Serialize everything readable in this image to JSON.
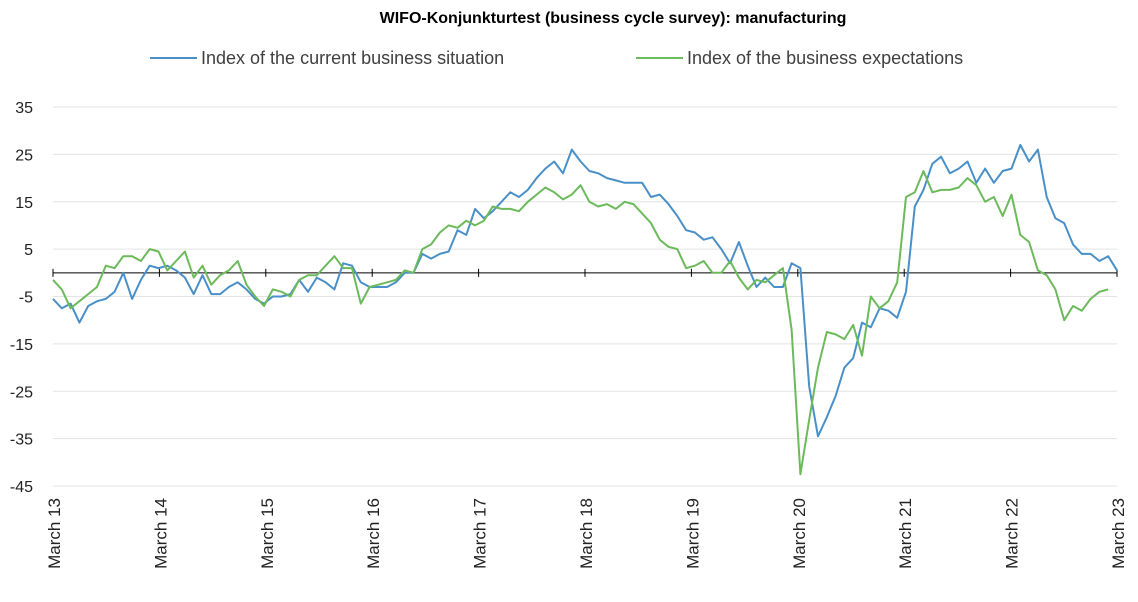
{
  "chart_data": {
    "type": "line",
    "title": "WIFO-Konjunkturtest (business cycle survey): manufacturing",
    "xlabel": "",
    "ylabel": "",
    "ylim": [
      -45,
      35
    ],
    "yticks": [
      35,
      25,
      15,
      5,
      -5,
      -15,
      -25,
      -35,
      -45
    ],
    "grid": true,
    "legend_position": "top",
    "x_start": "March 13",
    "x_end": "March 23",
    "x_tick_labels": [
      "March 13",
      "March 14",
      "March 15",
      "March 16",
      "March 17",
      "March 18",
      "March 19",
      "March 20",
      "March 21",
      "March 22",
      "March 23"
    ],
    "series": [
      {
        "name": "Index of the current business situation",
        "color": "#4a90c8",
        "values": [
          -5.5,
          -7.5,
          -6.5,
          -10.5,
          -7,
          -6,
          -5.5,
          -4,
          0,
          -5.5,
          -1.5,
          1.5,
          1,
          1.5,
          0.5,
          -1,
          -4.5,
          -0.5,
          -4.5,
          -4.5,
          -3,
          -2,
          -3.5,
          -5.5,
          -6.5,
          -5,
          -5,
          -4.5,
          -1.5,
          -4,
          -1,
          -2,
          -3.5,
          2,
          1.5,
          -2,
          -3,
          -3,
          -3,
          -2,
          0,
          0,
          4,
          3,
          4,
          4.5,
          9,
          8,
          13.5,
          11.5,
          13,
          15,
          17,
          16,
          17.5,
          20,
          22,
          23.5,
          21,
          26,
          23.5,
          21.5,
          21,
          20,
          19.5,
          19,
          19,
          19,
          16,
          16.5,
          14.5,
          12,
          9,
          8.5,
          7,
          7.5,
          5,
          2,
          6.5,
          1.5,
          -3,
          -1,
          -3,
          -3,
          2,
          1,
          -24,
          -34.5,
          -30.5,
          -26,
          -20,
          -18,
          -10.5,
          -11.5,
          -7.5,
          -8,
          -9.5,
          -4,
          14,
          17.5,
          23,
          24.5,
          21,
          22,
          23.5,
          19,
          22,
          19,
          21.5,
          22,
          27,
          23.5,
          26,
          16,
          11.5,
          10.5,
          6,
          4,
          4,
          2.5,
          3.5,
          0.5
        ]
      },
      {
        "name": "Index of the business expectations",
        "color": "#6cba5c",
        "values": [
          -1.5,
          -3.5,
          -7.5,
          -6,
          -4.5,
          -3,
          1.5,
          1,
          3.5,
          3.5,
          2.5,
          5,
          4.5,
          0.5,
          2.5,
          4.5,
          -1,
          1.5,
          -2.5,
          -0.5,
          0.5,
          2.5,
          -2.5,
          -5,
          -7,
          -3.5,
          -4,
          -5,
          -1.5,
          -0.5,
          -0.5,
          1.5,
          3.5,
          1,
          1,
          -6.5,
          -3,
          -2.5,
          -2,
          -1.5,
          0.5,
          0,
          5,
          6,
          8.5,
          10,
          9.5,
          11,
          10,
          11,
          14,
          13.5,
          13.5,
          13,
          15,
          16.5,
          18,
          17,
          15.5,
          16.5,
          18.5,
          15,
          14,
          14.5,
          13.5,
          15,
          14.5,
          12.5,
          10.5,
          7,
          5.5,
          5,
          1,
          1.5,
          2.5,
          0,
          0,
          2.5,
          -1,
          -3.5,
          -1.5,
          -2,
          -0.5,
          1,
          -12,
          -42.5,
          -31,
          -20,
          -12.5,
          -13,
          -14,
          -11,
          -17.5,
          -5,
          -7.5,
          -6,
          -2,
          16,
          17,
          21.5,
          17,
          17.5,
          17.5,
          18,
          20,
          18.5,
          15,
          16,
          12,
          16.5,
          8,
          6.5,
          0.5,
          -0.5,
          -3.5,
          -10,
          -7,
          -8,
          -5.5,
          -4,
          -3.5
        ]
      }
    ]
  }
}
